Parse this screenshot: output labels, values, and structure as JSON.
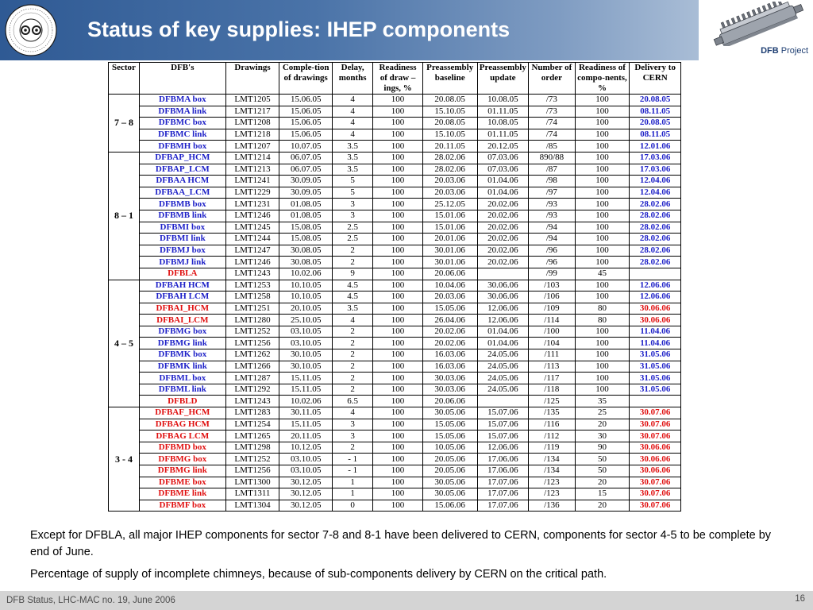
{
  "title": "Status of key supplies: IHEP components",
  "brand": {
    "bold": "DFB",
    "rest": " Project"
  },
  "table": {
    "headers": [
      "Sector",
      "DFB's",
      "Drawings",
      "Comple-tion of drawings",
      "Delay, months",
      "Readiness of draw – ings, %",
      "Preassembly baseline",
      "Preassembly update",
      "Number of order",
      "Readiness of compo-nents, %",
      "Delivery to CERN"
    ],
    "groups": [
      {
        "sector": "7 – 8",
        "rows": [
          {
            "name": "DFBMA box",
            "nc": "blue",
            "dwg": "LMT1205",
            "comp": "15.06.05",
            "delay": "4",
            "ready": "100",
            "base": "20.08.05",
            "upd": "10.08.05",
            "order": "/73",
            "rc": "100",
            "deliv": "20.08.05",
            "dc": "blue"
          },
          {
            "name": "DFBMA link",
            "nc": "blue",
            "dwg": "LMT1217",
            "comp": "15.06.05",
            "delay": "4",
            "ready": "100",
            "base": "15.10.05",
            "upd": "01.11.05",
            "order": "/73",
            "rc": "100",
            "deliv": "08.11.05",
            "dc": "blue"
          },
          {
            "name": "DFBMC box",
            "nc": "blue",
            "dwg": "LMT1208",
            "comp": "15.06.05",
            "delay": "4",
            "ready": "100",
            "base": "20.08.05",
            "upd": "10.08.05",
            "order": "/74",
            "rc": "100",
            "deliv": "20.08.05",
            "dc": "blue"
          },
          {
            "name": "DFBMC link",
            "nc": "blue",
            "dwg": "LMT1218",
            "comp": "15.06.05",
            "delay": "4",
            "ready": "100",
            "base": "15.10.05",
            "upd": "01.11.05",
            "order": "/74",
            "rc": "100",
            "deliv": "08.11.05",
            "dc": "blue"
          },
          {
            "name": "DFBMH box",
            "nc": "blue",
            "dwg": "LMT1207",
            "comp": "10.07.05",
            "delay": "3.5",
            "ready": "100",
            "base": "20.11.05",
            "upd": "20.12.05",
            "order": "/85",
            "rc": "100",
            "deliv": "12.01.06",
            "dc": "blue"
          }
        ]
      },
      {
        "sector": "8 – 1",
        "rows": [
          {
            "name": "DFBAP_HCM",
            "nc": "blue",
            "dwg": "LMT1214",
            "comp": "06.07.05",
            "delay": "3.5",
            "ready": "100",
            "base": "28.02.06",
            "upd": "07.03.06",
            "order": "890/88",
            "rc": "100",
            "deliv": "17.03.06",
            "dc": "blue"
          },
          {
            "name": "DFBAP_LCM",
            "nc": "blue",
            "dwg": "LMT1213",
            "comp": "06.07.05",
            "delay": "3.5",
            "ready": "100",
            "base": "28.02.06",
            "upd": "07.03.06",
            "order": "/87",
            "rc": "100",
            "deliv": "17.03.06",
            "dc": "blue"
          },
          {
            "name": "DFBAA HCM",
            "nc": "blue",
            "dwg": "LMT1241",
            "comp": "30.09.05",
            "delay": "5",
            "ready": "100",
            "base": "20.03.06",
            "upd": "01.04.06",
            "order": "/98",
            "rc": "100",
            "deliv": "12.04.06",
            "dc": "blue"
          },
          {
            "name": "DFBAA_LCM",
            "nc": "blue",
            "dwg": "LMT1229",
            "comp": "30.09.05",
            "delay": "5",
            "ready": "100",
            "base": "20.03.06",
            "upd": "01.04.06",
            "order": "/97",
            "rc": "100",
            "deliv": "12.04.06",
            "dc": "blue"
          },
          {
            "name": "DFBMB box",
            "nc": "blue",
            "dwg": "LMT1231",
            "comp": "01.08.05",
            "delay": "3",
            "ready": "100",
            "base": "25.12.05",
            "upd": "20.02.06",
            "order": "/93",
            "rc": "100",
            "deliv": "28.02.06",
            "dc": "blue"
          },
          {
            "name": "DFBMB link",
            "nc": "blue",
            "dwg": "LMT1246",
            "comp": "01.08.05",
            "delay": "3",
            "ready": "100",
            "base": "15.01.06",
            "upd": "20.02.06",
            "order": "/93",
            "rc": "100",
            "deliv": "28.02.06",
            "dc": "blue"
          },
          {
            "name": "DFBMI box",
            "nc": "blue",
            "dwg": "LMT1245",
            "comp": "15.08.05",
            "delay": "2.5",
            "ready": "100",
            "base": "15.01.06",
            "upd": "20.02.06",
            "order": "/94",
            "rc": "100",
            "deliv": "28.02.06",
            "dc": "blue"
          },
          {
            "name": "DFBMI link",
            "nc": "blue",
            "dwg": "LMT1244",
            "comp": "15.08.05",
            "delay": "2.5",
            "ready": "100",
            "base": "20.01.06",
            "upd": "20.02.06",
            "order": "/94",
            "rc": "100",
            "deliv": "28.02.06",
            "dc": "blue"
          },
          {
            "name": "DFBMJ box",
            "nc": "blue",
            "dwg": "LMT1247",
            "comp": "30.08.05",
            "delay": "2",
            "ready": "100",
            "base": "30.01.06",
            "upd": "20.02.06",
            "order": "/96",
            "rc": "100",
            "deliv": "28.02.06",
            "dc": "blue"
          },
          {
            "name": "DFBMJ link",
            "nc": "blue",
            "dwg": "LMT1246",
            "comp": "30.08.05",
            "delay": "2",
            "ready": "100",
            "base": "30.01.06",
            "upd": "20.02.06",
            "order": "/96",
            "rc": "100",
            "deliv": "28.02.06",
            "dc": "blue"
          },
          {
            "name": "DFBLA",
            "nc": "red",
            "dwg": "LMT1243",
            "comp": "10.02.06",
            "delay": "9",
            "ready": "100",
            "base": "20.06.06",
            "upd": "",
            "order": "/99",
            "rc": "45",
            "deliv": "",
            "dc": "blue"
          }
        ]
      },
      {
        "sector": "4 – 5",
        "rows": [
          {
            "name": "DFBAH HCM",
            "nc": "blue",
            "dwg": "LMT1253",
            "comp": "10.10.05",
            "delay": "4.5",
            "ready": "100",
            "base": "10.04.06",
            "upd": "30.06.06",
            "order": "/103",
            "rc": "100",
            "deliv": "12.06.06",
            "dc": "blue"
          },
          {
            "name": "DFBAH LCM",
            "nc": "blue",
            "dwg": "LMT1258",
            "comp": "10.10.05",
            "delay": "4.5",
            "ready": "100",
            "base": "20.03.06",
            "upd": "30.06.06",
            "order": "/106",
            "rc": "100",
            "deliv": "12.06.06",
            "dc": "blue"
          },
          {
            "name": "DFBAI_HCM",
            "nc": "red",
            "dwg": "LMT1251",
            "comp": "20.10.05",
            "delay": "3.5",
            "ready": "100",
            "base": "15.05.06",
            "upd": "12.06.06",
            "order": "/109",
            "rc": "80",
            "deliv": "30.06.06",
            "dc": "red"
          },
          {
            "name": "DFBAI_LCM",
            "nc": "red",
            "dwg": "LMT1280",
            "comp": "25.10.05",
            "delay": "4",
            "ready": "100",
            "base": "26.04.06",
            "upd": "12.06.06",
            "order": "/114",
            "rc": "80",
            "deliv": "30.06.06",
            "dc": "red"
          },
          {
            "name": "DFBMG box",
            "nc": "blue",
            "dwg": "LMT1252",
            "comp": "03.10.05",
            "delay": "2",
            "ready": "100",
            "base": "20.02.06",
            "upd": "01.04.06",
            "order": "/100",
            "rc": "100",
            "deliv": "11.04.06",
            "dc": "blue"
          },
          {
            "name": "DFBMG link",
            "nc": "blue",
            "dwg": "LMT1256",
            "comp": "03.10.05",
            "delay": "2",
            "ready": "100",
            "base": "20.02.06",
            "upd": "01.04.06",
            "order": "/104",
            "rc": "100",
            "deliv": "11.04.06",
            "dc": "blue"
          },
          {
            "name": "DFBMK box",
            "nc": "blue",
            "dwg": "LMT1262",
            "comp": "30.10.05",
            "delay": "2",
            "ready": "100",
            "base": "16.03.06",
            "upd": "24.05.06",
            "order": "/111",
            "rc": "100",
            "deliv": "31.05.06",
            "dc": "blue"
          },
          {
            "name": "DFBMK link",
            "nc": "blue",
            "dwg": "LMT1266",
            "comp": "30.10.05",
            "delay": "2",
            "ready": "100",
            "base": "16.03.06",
            "upd": "24.05.06",
            "order": "/113",
            "rc": "100",
            "deliv": "31.05.06",
            "dc": "blue"
          },
          {
            "name": "DFBML box",
            "nc": "blue",
            "dwg": "LMT1287",
            "comp": "15.11.05",
            "delay": "2",
            "ready": "100",
            "base": "30.03.06",
            "upd": "24.05.06",
            "order": "/117",
            "rc": "100",
            "deliv": "31.05.06",
            "dc": "blue"
          },
          {
            "name": "DFBML link",
            "nc": "blue",
            "dwg": "LMT1292",
            "comp": "15.11.05",
            "delay": "2",
            "ready": "100",
            "base": "30.03.06",
            "upd": "24.05.06",
            "order": "/118",
            "rc": "100",
            "deliv": "31.05.06",
            "dc": "blue"
          },
          {
            "name": "DFBLD",
            "nc": "red",
            "dwg": "LMT1243",
            "comp": "10.02.06",
            "delay": "6.5",
            "ready": "100",
            "base": "20.06.06",
            "upd": "",
            "order": "/125",
            "rc": "35",
            "deliv": "",
            "dc": "blue"
          }
        ]
      },
      {
        "sector": "3 - 4",
        "rows": [
          {
            "name": "DFBAF_HCM",
            "nc": "red",
            "dwg": "LMT1283",
            "comp": "30.11.05",
            "delay": "4",
            "ready": "100",
            "base": "30.05.06",
            "upd": "15.07.06",
            "order": "/135",
            "rc": "25",
            "deliv": "30.07.06",
            "dc": "red"
          },
          {
            "name": "DFBAG HCM",
            "nc": "red",
            "dwg": "LMT1254",
            "comp": "15.11.05",
            "delay": "3",
            "ready": "100",
            "base": "15.05.06",
            "upd": "15.07.06",
            "order": "/116",
            "rc": "20",
            "deliv": "30.07.06",
            "dc": "red"
          },
          {
            "name": "DFBAG LCM",
            "nc": "red",
            "dwg": "LMT1265",
            "comp": "20.11.05",
            "delay": "3",
            "ready": "100",
            "base": "15.05.06",
            "upd": "15.07.06",
            "order": "/112",
            "rc": "30",
            "deliv": "30.07.06",
            "dc": "red"
          },
          {
            "name": "DFBMD box",
            "nc": "red",
            "dwg": "LMT1298",
            "comp": "10.12.05",
            "delay": "2",
            "ready": "100",
            "base": "10.05.06",
            "upd": "12.06.06",
            "order": "/119",
            "rc": "90",
            "deliv": "30.06.06",
            "dc": "red"
          },
          {
            "name": "DFBMG box",
            "nc": "red",
            "dwg": "LMT1252",
            "comp": "03.10.05",
            "delay": "- 1",
            "ready": "100",
            "base": "20.05.06",
            "upd": "17.06.06",
            "order": "/134",
            "rc": "50",
            "deliv": "30.06.06",
            "dc": "red"
          },
          {
            "name": "DFBMG link",
            "nc": "red",
            "dwg": "LMT1256",
            "comp": "03.10.05",
            "delay": "- 1",
            "ready": "100",
            "base": "20.05.06",
            "upd": "17.06.06",
            "order": "/134",
            "rc": "50",
            "deliv": "30.06.06",
            "dc": "red"
          },
          {
            "name": "DFBME box",
            "nc": "red",
            "dwg": "LMT1300",
            "comp": "30.12.05",
            "delay": "1",
            "ready": "100",
            "base": "30.05.06",
            "upd": "17.07.06",
            "order": "/123",
            "rc": "20",
            "deliv": "30.07.06",
            "dc": "red"
          },
          {
            "name": "DFBME link",
            "nc": "red",
            "dwg": "LMT1311",
            "comp": "30.12.05",
            "delay": "1",
            "ready": "100",
            "base": "30.05.06",
            "upd": "17.07.06",
            "order": "/123",
            "rc": "15",
            "deliv": "30.07.06",
            "dc": "red"
          },
          {
            "name": "DFBMF box",
            "nc": "red",
            "dwg": "LMT1304",
            "comp": "30.12.05",
            "delay": "0",
            "ready": "100",
            "base": "15.06.06",
            "upd": "17.07.06",
            "order": "/136",
            "rc": "20",
            "deliv": "30.07.06",
            "dc": "red"
          }
        ]
      }
    ]
  },
  "notes": [
    "Except for DFBLA, all major IHEP components for sector 7-8 and 8-1 have been delivered to CERN, components for sector 4-5 to be complete by end of June.",
    "Percentage of supply of incomplete chimneys, because of sub-components delivery by CERN on the critical path."
  ],
  "footer": {
    "left": "DFB Status, LHC-MAC no. 19, June 2006",
    "page": "16"
  },
  "colors": {
    "title_bar": "#2f5a94",
    "blue_text": "#1f22c8",
    "red_text": "#e01010",
    "footer_bg": "#d4d4d4"
  },
  "icons": {
    "logo": "cern-logo-icon",
    "cryostat": "dfb-cryostat-icon"
  }
}
